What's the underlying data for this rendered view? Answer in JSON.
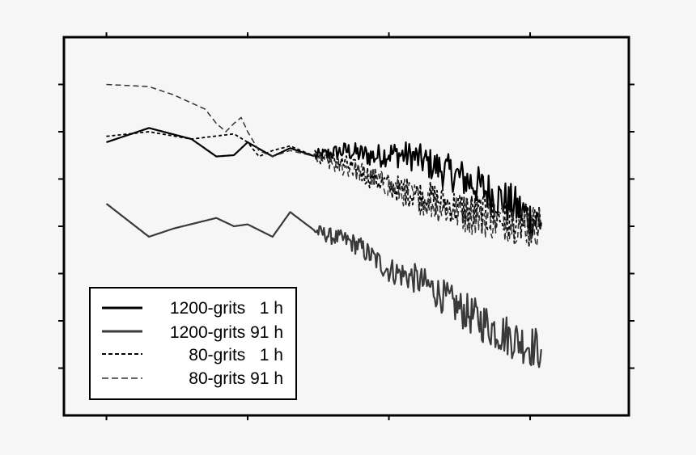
{
  "chart_data": {
    "type": "line",
    "title": "",
    "xlabel": "",
    "ylabel": "",
    "scale": "log-log",
    "grid": false,
    "legend_position": "bottom-left",
    "x_ticks": [
      10,
      100,
      1000,
      10000
    ],
    "xlim": [
      5,
      50000
    ],
    "ylim": [
      1e-08,
      1
    ],
    "y_ticks": [
      1e-07,
      1e-06,
      1e-05,
      0.0001,
      0.001,
      0.01,
      0.1
    ],
    "series": [
      {
        "name": "1200-grits   1 h",
        "color": "#000000",
        "dash": "solid",
        "x": [
          10,
          20,
          40,
          60,
          80,
          100,
          150,
          200,
          300,
          400,
          500,
          600,
          800,
          1000,
          1500,
          2000,
          3000,
          4000,
          6000,
          8000,
          10000,
          12000
        ],
        "y": [
          0.006,
          0.012,
          0.007,
          0.003,
          0.0032,
          0.006,
          0.003,
          0.0045,
          0.003,
          0.0035,
          0.004,
          0.0035,
          0.003,
          0.0035,
          0.003,
          0.002,
          0.0012,
          0.0008,
          0.0004,
          0.00025,
          0.00015,
          0.00012
        ]
      },
      {
        "name": "1200-grits 91 h",
        "color": "#3a3a3a",
        "dash": "solid",
        "x": [
          10,
          20,
          30,
          60,
          80,
          100,
          150,
          200,
          300,
          400,
          500,
          600,
          800,
          1000,
          1500,
          2000,
          3000,
          4000,
          6000,
          8000,
          10000,
          12000
        ],
        "y": [
          0.0003,
          6e-05,
          9e-05,
          0.00015,
          0.0001,
          0.00011,
          6e-05,
          0.0002,
          8e-05,
          6e-05,
          5e-05,
          4e-05,
          2e-05,
          1.2e-05,
          8e-06,
          5e-06,
          2e-06,
          1.2e-06,
          6e-07,
          4e-07,
          3e-07,
          2.5e-07
        ]
      },
      {
        "name": "80-grits   1 h",
        "color": "#000000",
        "dash": "short",
        "x": [
          10,
          20,
          40,
          80,
          100,
          120,
          150,
          200,
          300,
          400,
          500,
          600,
          800,
          1000,
          1500,
          2000,
          3000,
          4000,
          6000,
          8000,
          10000,
          12000
        ],
        "y": [
          0.008,
          0.01,
          0.007,
          0.009,
          0.006,
          0.003,
          0.004,
          0.005,
          0.003,
          0.0025,
          0.002,
          0.0015,
          0.001,
          0.0007,
          0.0005,
          0.0004,
          0.00025,
          0.0002,
          0.00015,
          0.00012,
          0.0001,
          0.0001
        ]
      },
      {
        "name": "80-grits 91 h",
        "color": "#333333",
        "dash": "long",
        "x": [
          10,
          20,
          30,
          50,
          60,
          70,
          80,
          90,
          100,
          120,
          150,
          200,
          300,
          400,
          600,
          800,
          1000,
          2000,
          3000,
          5000,
          8000,
          12000
        ],
        "y": [
          0.1,
          0.09,
          0.06,
          0.03,
          0.015,
          0.01,
          0.015,
          0.02,
          0.01,
          0.004,
          0.003,
          0.004,
          0.003,
          0.002,
          0.0015,
          0.001,
          0.0007,
          0.0003,
          0.0002,
          0.00015,
          0.00012,
          0.0001
        ]
      }
    ],
    "legend": [
      {
        "label": "1200-grits   1 h"
      },
      {
        "label": "1200-grits 91 h"
      },
      {
        "label": "80-grits   1 h"
      },
      {
        "label": "80-grits 91 h"
      }
    ]
  }
}
